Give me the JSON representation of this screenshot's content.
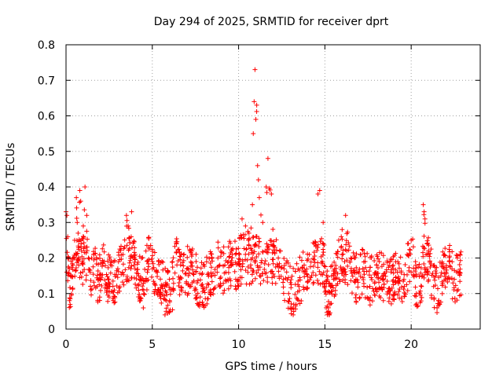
{
  "chart_data": {
    "type": "scatter",
    "title": "Day 294 of 2025, SRMTID for receiver dprt",
    "xlabel": "GPS time / hours",
    "ylabel": "SRMTID / TECUs",
    "xlim": [
      0,
      24
    ],
    "ylim": [
      0,
      0.8
    ],
    "xticks": [
      0,
      5,
      10,
      15,
      20
    ],
    "yticks": [
      0,
      0.1,
      0.2,
      0.3,
      0.4,
      0.5,
      0.6,
      0.7,
      0.8
    ],
    "xtick_labels": [
      "0",
      "5",
      "10",
      "15",
      "20"
    ],
    "ytick_labels": [
      "0",
      "0.1",
      "0.2",
      "0.3",
      "0.4",
      "0.5",
      "0.6",
      "0.7",
      "0.8"
    ],
    "grid": true,
    "marker": "+",
    "color": "#ff0000",
    "x_data_range": [
      0,
      22.9
    ],
    "series": [
      {
        "name": "dprt",
        "points": [
          [
            0.0,
            0.33
          ],
          [
            0.05,
            0.32
          ],
          [
            0.1,
            0.26
          ],
          [
            0.15,
            0.2
          ],
          [
            0.2,
            0.08
          ],
          [
            0.3,
            0.15
          ],
          [
            0.4,
            0.18
          ],
          [
            0.5,
            0.25
          ],
          [
            0.6,
            0.37
          ],
          [
            0.65,
            0.3
          ],
          [
            0.7,
            0.27
          ],
          [
            0.8,
            0.39
          ],
          [
            0.85,
            0.36
          ],
          [
            0.9,
            0.22
          ],
          [
            1.0,
            0.29
          ],
          [
            1.1,
            0.4
          ],
          [
            1.2,
            0.32
          ],
          [
            1.3,
            0.2
          ],
          [
            1.4,
            0.16
          ],
          [
            1.6,
            0.21
          ],
          [
            1.8,
            0.12
          ],
          [
            2.0,
            0.14
          ],
          [
            2.2,
            0.19
          ],
          [
            2.5,
            0.13
          ],
          [
            2.8,
            0.11
          ],
          [
            3.0,
            0.17
          ],
          [
            3.3,
            0.21
          ],
          [
            3.5,
            0.32
          ],
          [
            3.6,
            0.29
          ],
          [
            3.8,
            0.33
          ],
          [
            4.0,
            0.21
          ],
          [
            4.2,
            0.15
          ],
          [
            4.5,
            0.11
          ],
          [
            4.8,
            0.23
          ],
          [
            5.0,
            0.19
          ],
          [
            5.3,
            0.16
          ],
          [
            5.6,
            0.12
          ],
          [
            5.8,
            0.05
          ],
          [
            6.0,
            0.08
          ],
          [
            6.2,
            0.11
          ],
          [
            6.4,
            0.24
          ],
          [
            6.6,
            0.14
          ],
          [
            7.0,
            0.17
          ],
          [
            7.3,
            0.21
          ],
          [
            7.6,
            0.13
          ],
          [
            8.0,
            0.11
          ],
          [
            8.4,
            0.15
          ],
          [
            8.8,
            0.2
          ],
          [
            9.2,
            0.18
          ],
          [
            9.6,
            0.22
          ],
          [
            10.0,
            0.19
          ],
          [
            10.2,
            0.31
          ],
          [
            10.4,
            0.29
          ],
          [
            10.6,
            0.27
          ],
          [
            10.8,
            0.35
          ],
          [
            10.85,
            0.55
          ],
          [
            10.9,
            0.64
          ],
          [
            10.95,
            0.73
          ],
          [
            11.0,
            0.59
          ],
          [
            11.05,
            0.63
          ],
          [
            11.1,
            0.46
          ],
          [
            11.15,
            0.42
          ],
          [
            11.2,
            0.37
          ],
          [
            11.4,
            0.3
          ],
          [
            11.6,
            0.4
          ],
          [
            11.7,
            0.48
          ],
          [
            11.9,
            0.38
          ],
          [
            12.1,
            0.23
          ],
          [
            12.3,
            0.2
          ],
          [
            12.6,
            0.14
          ],
          [
            12.9,
            0.1
          ],
          [
            13.2,
            0.07
          ],
          [
            13.5,
            0.12
          ],
          [
            13.8,
            0.18
          ],
          [
            14.1,
            0.21
          ],
          [
            14.4,
            0.24
          ],
          [
            14.6,
            0.38
          ],
          [
            14.7,
            0.39
          ],
          [
            14.9,
            0.3
          ],
          [
            15.0,
            0.12
          ],
          [
            15.2,
            0.05
          ],
          [
            15.5,
            0.14
          ],
          [
            15.8,
            0.25
          ],
          [
            16.0,
            0.28
          ],
          [
            16.2,
            0.32
          ],
          [
            16.5,
            0.2
          ],
          [
            16.8,
            0.14
          ],
          [
            17.2,
            0.17
          ],
          [
            17.6,
            0.12
          ],
          [
            18.0,
            0.18
          ],
          [
            18.4,
            0.14
          ],
          [
            18.8,
            0.11
          ],
          [
            19.2,
            0.16
          ],
          [
            19.6,
            0.12
          ],
          [
            20.0,
            0.25
          ],
          [
            20.3,
            0.1
          ],
          [
            20.6,
            0.12
          ],
          [
            20.7,
            0.35
          ],
          [
            20.75,
            0.33
          ],
          [
            20.8,
            0.31
          ],
          [
            21.0,
            0.22
          ],
          [
            21.3,
            0.12
          ],
          [
            21.6,
            0.08
          ],
          [
            21.9,
            0.17
          ],
          [
            22.2,
            0.19
          ],
          [
            22.5,
            0.14
          ],
          [
            22.8,
            0.16
          ]
        ]
      }
    ]
  }
}
